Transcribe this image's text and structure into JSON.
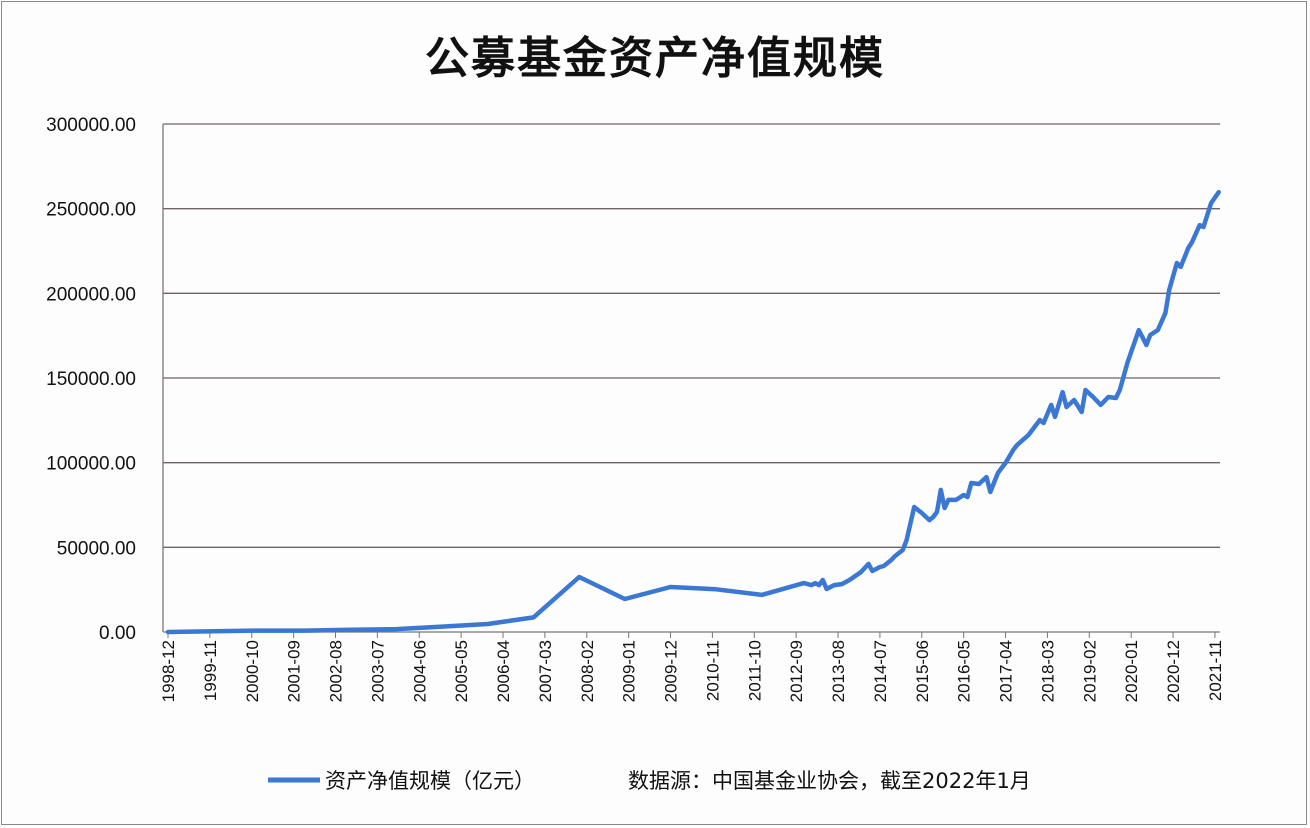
{
  "chart_data": {
    "type": "line",
    "title": "公募基金资产净值规模",
    "xlabel": "",
    "ylabel": "",
    "ylim": [
      0,
      300000
    ],
    "yticks": [
      "0.00",
      "50000.00",
      "100000.00",
      "150000.00",
      "200000.00",
      "250000.00",
      "300000.00"
    ],
    "xticks": [
      "1998-12",
      "1999-11",
      "2000-10",
      "2001-09",
      "2002-08",
      "2003-07",
      "2004-06",
      "2005-05",
      "2006-04",
      "2007-03",
      "2008-02",
      "2009-01",
      "2009-12",
      "2010-11",
      "2011-10",
      "2012-09",
      "2013-08",
      "2014-07",
      "2015-06",
      "2016-05",
      "2017-04",
      "2018-03",
      "2019-02",
      "2020-01",
      "2020-12",
      "2021-11"
    ],
    "grid": "horizontal",
    "legend_position": "bottom",
    "color": "#3a78d4",
    "source_note": "数据源：中国基金业协会，截至2022年1月",
    "series": [
      {
        "name": "资产净值规模（亿元）",
        "x": [
          "1998-12",
          "1999-12",
          "2000-12",
          "2001-12",
          "2002-12",
          "2003-12",
          "2004-12",
          "2005-12",
          "2006-12",
          "2007-12",
          "2008-12",
          "2009-12",
          "2010-12",
          "2011-12",
          "2012-11",
          "2013-01",
          "2013-02",
          "2013-03",
          "2013-04",
          "2013-05",
          "2013-07",
          "2013-09",
          "2013-11",
          "2014-02",
          "2014-04",
          "2014-05",
          "2014-07",
          "2014-08",
          "2014-10",
          "2014-11",
          "2015-01",
          "2015-02",
          "2015-04",
          "2015-06",
          "2015-08",
          "2015-09",
          "2015-10",
          "2015-11",
          "2015-12",
          "2016-01",
          "2016-03",
          "2016-05",
          "2016-06",
          "2016-07",
          "2016-09",
          "2016-11",
          "2016-12",
          "2017-02",
          "2017-03",
          "2017-04",
          "2017-06",
          "2017-07",
          "2017-10",
          "2018-01",
          "2018-02",
          "2018-04",
          "2018-05",
          "2018-07",
          "2018-08",
          "2018-10",
          "2018-12",
          "2019-01",
          "2019-03",
          "2019-05",
          "2019-07",
          "2019-09",
          "2019-10",
          "2019-12",
          "2020-01",
          "2020-03",
          "2020-05",
          "2020-06",
          "2020-08",
          "2020-10",
          "2020-11",
          "2021-01",
          "2021-02",
          "2021-04",
          "2021-05",
          "2021-07",
          "2021-08",
          "2021-10",
          "2021-12"
        ],
        "values": [
          0,
          500,
          850,
          800,
          1300,
          1700,
          3200,
          4700,
          8600,
          32500,
          19500,
          26600,
          25200,
          21900,
          28900,
          27700,
          28900,
          27700,
          30700,
          25400,
          27700,
          28300,
          30700,
          35400,
          40200,
          36000,
          38400,
          39000,
          42500,
          44900,
          48400,
          54300,
          73800,
          70300,
          66100,
          67900,
          70900,
          83900,
          73200,
          78000,
          78000,
          80900,
          79700,
          88000,
          87400,
          91500,
          82700,
          93900,
          96900,
          99800,
          107500,
          110400,
          116300,
          125200,
          123400,
          134100,
          127000,
          141700,
          132900,
          137000,
          129900,
          142900,
          138800,
          134100,
          138800,
          138200,
          142900,
          158900,
          165400,
          178300,
          169500,
          175400,
          178300,
          188400,
          202000,
          217900,
          215600,
          226800,
          230300,
          240300,
          239200,
          253300,
          259800
        ]
      }
    ]
  }
}
